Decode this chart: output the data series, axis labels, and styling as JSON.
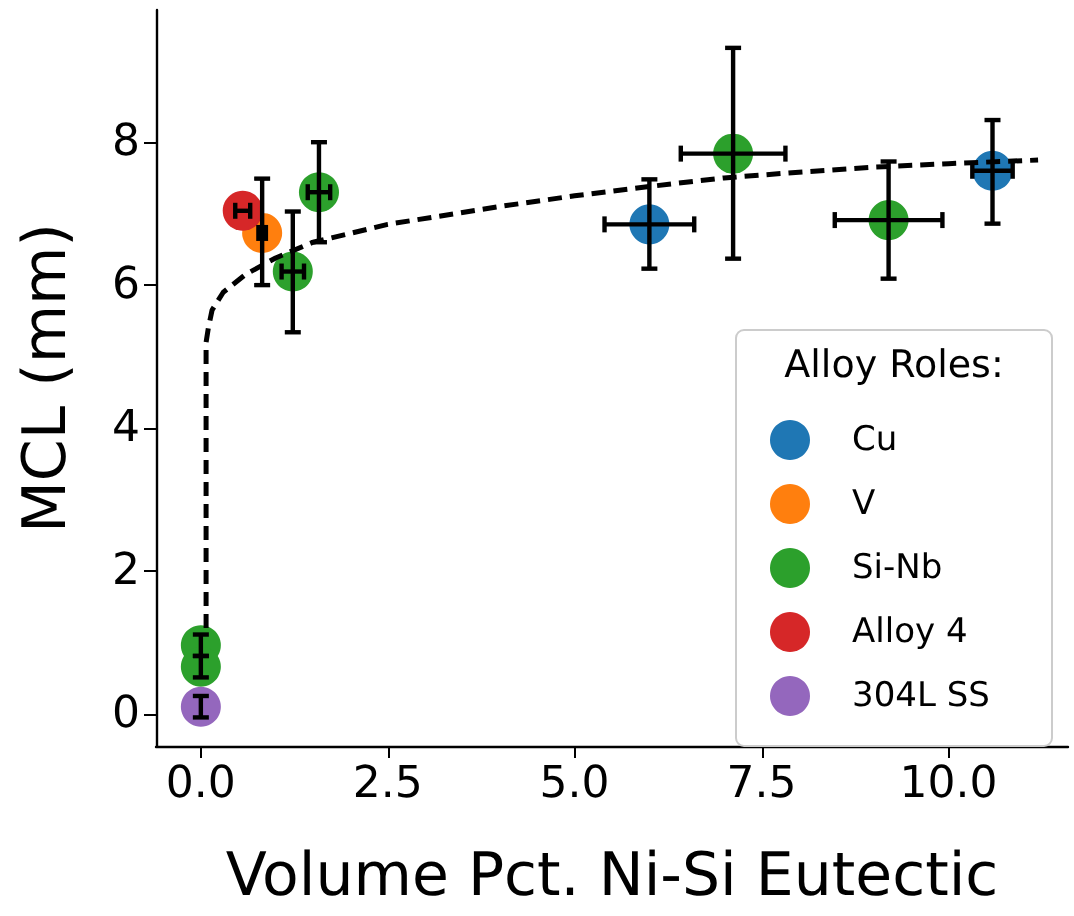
{
  "chart_data": {
    "type": "scatter",
    "xlabel": "Volume Pct. Ni-Si Eutectic",
    "ylabel": "MCL (mm)",
    "legend_title": "Alloy Roles:",
    "legend": "bottom right",
    "grid": false,
    "marker": "circle",
    "xlim": [
      -0.6,
      11.6
    ],
    "ylim": [
      -0.45,
      9.85
    ],
    "xticks": [
      {
        "value": 0,
        "label": "0.0"
      },
      {
        "value": 2.5,
        "label": "2.5"
      },
      {
        "value": 5,
        "label": "5.0"
      },
      {
        "value": 7.5,
        "label": "7.5"
      },
      {
        "value": 10,
        "label": "10.0"
      }
    ],
    "yticks": [
      0,
      2,
      4,
      6,
      8
    ],
    "series": [
      {
        "name": "Cu",
        "color": "#1f77b4",
        "x": [
          6.0,
          10.59
        ],
        "values": [
          6.85,
          7.6
        ],
        "errors": [
          [
            6.23,
            7.48
          ],
          [
            6.86,
            8.31
          ]
        ],
        "xerrors": [
          0.6,
          0.27
        ]
      },
      {
        "name": "V",
        "color": "#ff7f0e",
        "x": [
          0.82
        ],
        "values": [
          6.73
        ],
        "errors": [
          [
            6.0,
            7.49
          ]
        ],
        "xerrors": [
          0.05
        ]
      },
      {
        "name": "Si-Nb",
        "color": "#2ca02c",
        "x": [
          1.23,
          1.58,
          7.12,
          9.2,
          0.0,
          0.0
        ],
        "values": [
          6.19,
          7.3,
          7.84,
          6.91,
          0.96,
          0.66
        ],
        "errors": [
          [
            5.34,
            7.03
          ],
          [
            6.6,
            8.0
          ],
          [
            6.37,
            9.32
          ],
          [
            6.09,
            7.73
          ],
          0.15,
          0.15
        ],
        "xerrors": [
          0.15,
          0.15,
          0.7,
          0.72,
          null,
          null
        ]
      },
      {
        "name": "Alloy 4",
        "color": "#d62728",
        "x": [
          0.56
        ],
        "values": [
          7.04
        ],
        "xerrors": [
          0.1
        ]
      },
      {
        "name": "304L SS",
        "color": "#9467bd",
        "x": [
          0.0
        ],
        "values": [
          0.1
        ],
        "errors": [
          0.15
        ]
      },
      {
        "type": "line",
        "color": "#000000",
        "line_style": "dashed",
        "marker": "none",
        "x": [
          0.07,
          0.07,
          0.1,
          0.15,
          0.3,
          0.6,
          1,
          1.5,
          2.5,
          4,
          5,
          6,
          7,
          8,
          9,
          10,
          11.2
        ],
        "values": [
          1.2,
          5.2,
          5.4,
          5.65,
          5.9,
          6.15,
          6.38,
          6.6,
          6.85,
          7.1,
          7.25,
          7.38,
          7.5,
          7.58,
          7.65,
          7.7,
          7.75
        ]
      }
    ]
  }
}
